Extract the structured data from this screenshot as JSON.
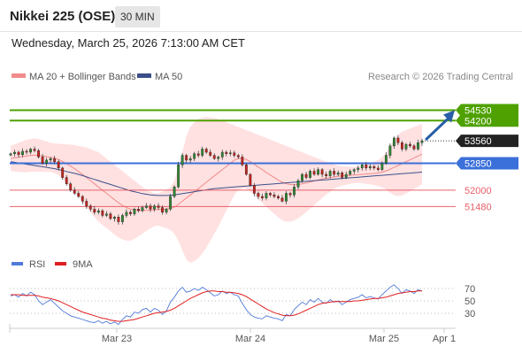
{
  "header": {
    "instrument": "Nikkei 225 (OSE)",
    "interval": "30 MIN",
    "datetime": "Wednesday, March 25, 2026 7:13:00 AM CET"
  },
  "legend": {
    "ma20": "MA 20 + Bollinger Bands",
    "ma50": "MA 50",
    "source": "Research © 2026 Trading Central",
    "rsi": "RSI",
    "rsi9": "9MA"
  },
  "colors": {
    "resistance": "#4ea100",
    "pivot": "#3b6fd9",
    "support": "#e8606a",
    "price": "#222222",
    "bollinger": "#ffd7d7",
    "ma20": "#f28b8b",
    "ma50": "#3a4f8a",
    "candle_up": "#2f8a34",
    "candle_down": "#c8231e",
    "rsi": "#4f7ad9",
    "rsi_ma": "#e02020",
    "arrow": "#2a5ea8"
  },
  "chart_data": [
    {
      "type": "candlestick",
      "x_labels": [
        "Mar 23",
        "Mar 24",
        "Mar 25",
        "Apr 1"
      ],
      "ylim": [
        50400,
        55300
      ],
      "levels": [
        {
          "name": "resistance-2",
          "value": 54530,
          "label": "54530",
          "kind": "resistance"
        },
        {
          "name": "resistance-1",
          "value": 54200,
          "label": "54200",
          "kind": "resistance"
        },
        {
          "name": "last-price",
          "value": 53560,
          "label": "53560",
          "kind": "price"
        },
        {
          "name": "pivot",
          "value": 52850,
          "label": "52850",
          "kind": "pivot"
        },
        {
          "name": "support-1",
          "value": 52000,
          "label": "52000",
          "kind": "support"
        },
        {
          "name": "support-2",
          "value": 51480,
          "label": "51480",
          "kind": "support"
        }
      ],
      "close": [
        53150,
        53200,
        53120,
        53230,
        53200,
        53300,
        53250,
        53050,
        52850,
        52950,
        53000,
        52900,
        52700,
        52400,
        52200,
        52000,
        51900,
        51800,
        51650,
        51500,
        51400,
        51300,
        51350,
        51200,
        51250,
        51100,
        51150,
        51000,
        51200,
        51300,
        51250,
        51400,
        51350,
        51450,
        51500,
        51400,
        51500,
        51450,
        51300,
        51400,
        51800,
        52100,
        52800,
        53100,
        52950,
        53000,
        53150,
        53100,
        53300,
        53200,
        53100,
        53000,
        53050,
        53200,
        53150,
        53180,
        53100,
        53050,
        52800,
        52500,
        52150,
        51900,
        51800,
        51750,
        51900,
        51850,
        51800,
        51750,
        51650,
        51900,
        51850,
        52100,
        52300,
        52500,
        52400,
        52600,
        52500,
        52650,
        52500,
        52450,
        52600,
        52500,
        52550,
        52400,
        52500,
        52600,
        52650,
        52700,
        52800,
        52700,
        52750,
        52700,
        52650,
        52850,
        53100,
        53400,
        53650,
        53500,
        53300,
        53450,
        53400,
        53300,
        53500,
        53560
      ],
      "ma20": [
        53000,
        53020,
        53040,
        53060,
        53080,
        53100,
        53110,
        53100,
        53080,
        53060,
        53040,
        53010,
        52970,
        52910,
        52840,
        52760,
        52680,
        52590,
        52500,
        52400,
        52300,
        52200,
        52100,
        52000,
        51900,
        51800,
        51700,
        51600,
        51520,
        51450,
        51400,
        51380,
        51370,
        51360,
        51360,
        51370,
        51380,
        51390,
        51390,
        51400,
        51420,
        51460,
        51550,
        51650,
        51750,
        51850,
        51950,
        52050,
        52150,
        52250,
        52350,
        52450,
        52550,
        52650,
        52750,
        52850,
        52950,
        53000,
        53000,
        52970,
        52900,
        52820,
        52730,
        52650,
        52560,
        52480,
        52400,
        52320,
        52250,
        52200,
        52180,
        52170,
        52180,
        52200,
        52230,
        52260,
        52290,
        52320,
        52350,
        52380,
        52400,
        52420,
        52440,
        52450,
        52460,
        52470,
        52480,
        52490,
        52500,
        52510,
        52520,
        52530,
        52540,
        52570,
        52610,
        52660,
        52720,
        52780,
        52840,
        52900,
        52960,
        53020,
        53080,
        53140
      ],
      "ma50": [
        52900,
        52880,
        52860,
        52840,
        52820,
        52800,
        52780,
        52760,
        52740,
        52720,
        52700,
        52680,
        52650,
        52620,
        52590,
        52560,
        52530,
        52500,
        52460,
        52420,
        52380,
        52340,
        52300,
        52260,
        52220,
        52180,
        52140,
        52100,
        52060,
        52020,
        51980,
        51950,
        51920,
        51890,
        51870,
        51850,
        51840,
        51830,
        51830,
        51830,
        51840,
        51850,
        51870,
        51890,
        51910,
        51930,
        51950,
        51970,
        51990,
        52010,
        52030,
        52050,
        52060,
        52070,
        52080,
        52090,
        52100,
        52110,
        52120,
        52130,
        52140,
        52150,
        52160,
        52170,
        52180,
        52190,
        52200,
        52210,
        52220,
        52230,
        52240,
        52250,
        52260,
        52270,
        52280,
        52290,
        52300,
        52310,
        52320,
        52330,
        52340,
        52350,
        52360,
        52370,
        52380,
        52390,
        52400,
        52410,
        52420,
        52430,
        52440,
        52450,
        52460,
        52470,
        52480,
        52490,
        52500,
        52510,
        52520,
        52530,
        52540,
        52550,
        52560,
        52570
      ],
      "bb_upper": [
        53400,
        53450,
        53500,
        53550,
        53600,
        53620,
        53640,
        53620,
        53580,
        53540,
        53500,
        53480,
        53470,
        53460,
        53450,
        53440,
        53430,
        53400,
        53380,
        53350,
        53300,
        53250,
        53200,
        53100,
        53000,
        52900,
        52800,
        52700,
        52600,
        52500,
        52400,
        52300,
        52200,
        52100,
        52000,
        51950,
        51900,
        51900,
        51950,
        52000,
        52100,
        52300,
        52700,
        53200,
        53700,
        54000,
        54150,
        54250,
        54300,
        54320,
        54300,
        54280,
        54250,
        54200,
        54150,
        54100,
        54050,
        54000,
        53950,
        53900,
        53850,
        53800,
        53750,
        53700,
        53650,
        53600,
        53550,
        53500,
        53450,
        53400,
        53350,
        53300,
        53250,
        53200,
        53150,
        53100,
        53050,
        53000,
        52950,
        52900,
        52850,
        52800,
        52780,
        52760,
        52750,
        52740,
        52740,
        52750,
        52780,
        52820,
        52860,
        52900,
        52950,
        53050,
        53200,
        53400,
        53600,
        53750,
        53850,
        53900,
        53950,
        54000,
        54050,
        54100
      ],
      "bb_lower": [
        52600,
        52590,
        52580,
        52570,
        52560,
        52580,
        52580,
        52580,
        52580,
        52580,
        52580,
        52540,
        52470,
        52360,
        52230,
        52080,
        51930,
        51780,
        51620,
        51450,
        51300,
        51150,
        51000,
        50900,
        50800,
        50700,
        50600,
        50500,
        50440,
        50400,
        50400,
        50460,
        50540,
        50620,
        50720,
        50790,
        50860,
        50880,
        50830,
        50800,
        50740,
        50620,
        50400,
        50100,
        49800,
        49700,
        49750,
        49850,
        50000,
        50180,
        50400,
        50620,
        50850,
        51100,
        51350,
        51600,
        51850,
        52000,
        52050,
        52040,
        51950,
        51840,
        51710,
        51600,
        51470,
        51360,
        51250,
        51140,
        51050,
        51000,
        51010,
        51040,
        51110,
        51200,
        51310,
        51420,
        51530,
        51640,
        51750,
        51860,
        51950,
        52040,
        52100,
        52140,
        52170,
        52200,
        52220,
        52230,
        52220,
        52200,
        52180,
        52160,
        52130,
        52090,
        52020,
        51920,
        51840,
        51810,
        51830,
        51900,
        51970,
        52040,
        52110,
        52180
      ]
    },
    {
      "type": "line",
      "ylim": [
        10,
        90
      ],
      "y_ticks": [
        70,
        50,
        30
      ],
      "rsi": [
        58,
        60,
        56,
        62,
        58,
        64,
        60,
        50,
        44,
        48,
        52,
        46,
        40,
        34,
        30,
        26,
        24,
        22,
        20,
        18,
        16,
        15,
        18,
        14,
        17,
        13,
        16,
        12,
        20,
        26,
        24,
        32,
        30,
        36,
        38,
        32,
        38,
        35,
        28,
        34,
        48,
        56,
        66,
        72,
        64,
        66,
        70,
        67,
        72,
        68,
        63,
        58,
        60,
        66,
        62,
        64,
        60,
        58,
        46,
        36,
        28,
        24,
        22,
        21,
        26,
        24,
        22,
        21,
        18,
        28,
        26,
        36,
        42,
        48,
        44,
        52,
        48,
        54,
        48,
        46,
        52,
        48,
        50,
        44,
        48,
        52,
        54,
        56,
        60,
        55,
        57,
        55,
        53,
        60,
        66,
        72,
        76,
        70,
        62,
        68,
        66,
        62,
        68,
        66
      ],
      "rsi_ma": [
        60,
        60,
        60,
        59,
        59,
        59,
        59,
        58,
        56,
        55,
        54,
        52,
        50,
        47,
        44,
        41,
        38,
        35,
        32,
        30,
        28,
        26,
        24,
        22,
        21,
        19,
        18,
        17,
        17,
        18,
        19,
        20,
        22,
        24,
        26,
        28,
        30,
        31,
        32,
        33,
        35,
        38,
        42,
        46,
        50,
        54,
        57,
        60,
        63,
        65,
        66,
        66,
        65,
        65,
        64,
        64,
        63,
        62,
        60,
        57,
        53,
        49,
        45,
        41,
        37,
        34,
        31,
        29,
        27,
        26,
        26,
        27,
        29,
        32,
        35,
        38,
        41,
        44,
        46,
        47,
        48,
        49,
        49,
        49,
        49,
        49,
        50,
        50,
        51,
        52,
        53,
        54,
        54,
        55,
        56,
        58,
        60,
        62,
        63,
        64,
        65,
        65,
        66,
        66
      ]
    }
  ]
}
